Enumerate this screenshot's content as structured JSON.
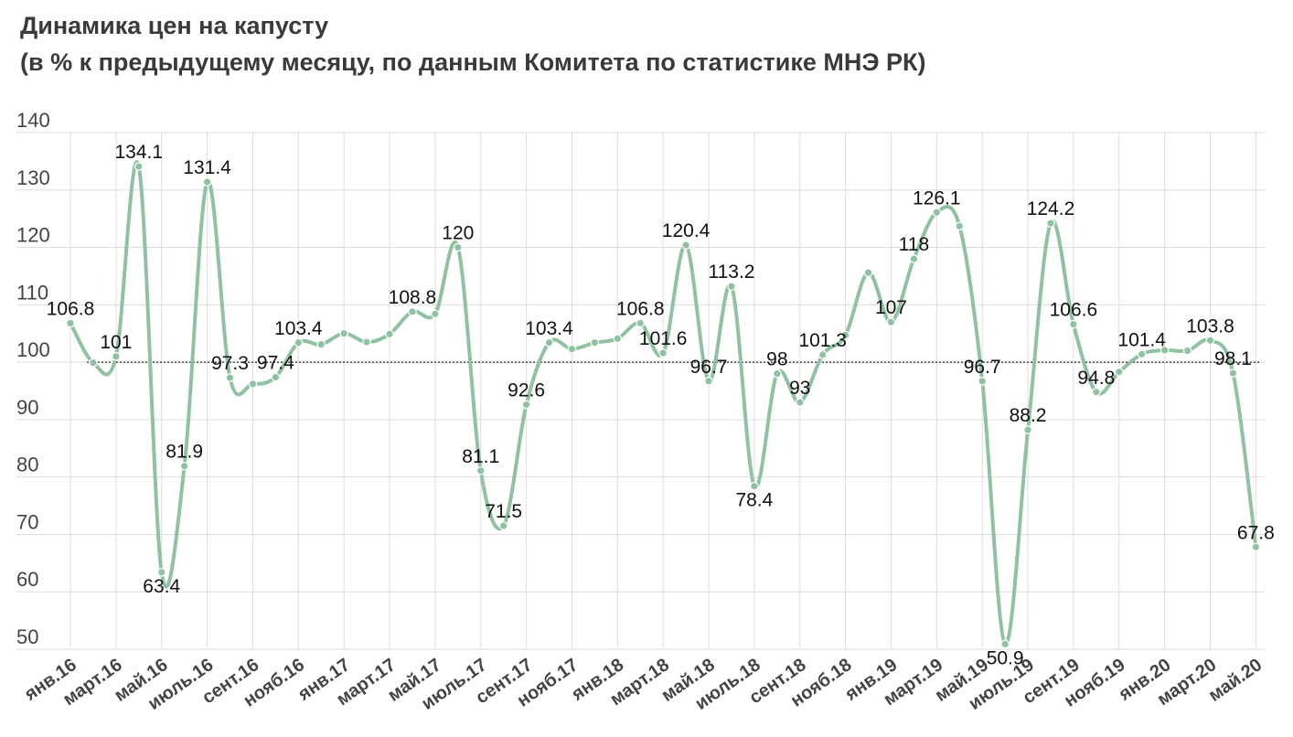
{
  "chart_data": {
    "type": "line",
    "title": "Динамика цен на капусту",
    "subtitle": "(в % к предыдущему месяцу, по данным Комитета по статистике МНЭ РК)",
    "xlabel": "",
    "ylabel": "",
    "ylim": [
      50,
      140
    ],
    "yticks": [
      140,
      130,
      120,
      110,
      100,
      90,
      80,
      70,
      60,
      50
    ],
    "reference_line": 100,
    "grid": true,
    "line_color": "#8fc1a2",
    "categories": [
      "янв.16",
      "февр.16",
      "март.16",
      "апр.16",
      "май.16",
      "июнь.16",
      "июль.16",
      "авг.16",
      "сент.16",
      "окт.16",
      "нояб.16",
      "дек.16",
      "янв.17",
      "февр.17",
      "март.17",
      "апр.17",
      "май.17",
      "июнь.17",
      "июль.17",
      "авг.17",
      "сент.17",
      "окт.17",
      "нояб.17",
      "дек.17",
      "янв.18",
      "февр.18",
      "март.18",
      "апр.18",
      "май.18",
      "июнь.18",
      "июль.18",
      "авг.18",
      "сент.18",
      "окт.18",
      "нояб.18",
      "дек.18",
      "янв.19",
      "февр.19",
      "март.19",
      "апр.19",
      "май.19",
      "июнь.19",
      "июль.19",
      "авг.19",
      "сент.19",
      "окт.19",
      "нояб.19",
      "дек.19",
      "янв.20",
      "февр.20",
      "март.20",
      "апр.20",
      "май.20"
    ],
    "x_tick_labels": [
      "янв.16",
      "март.16",
      "май.16",
      "июль.16",
      "сент.16",
      "нояб.16",
      "янв.17",
      "март.17",
      "май.17",
      "июль.17",
      "сент.17",
      "нояб.17",
      "янв.18",
      "март.18",
      "май.18",
      "июль.18",
      "сент.18",
      "нояб.18",
      "янв.19",
      "март.19",
      "май.19",
      "июль.19",
      "сент.19",
      "нояб.19",
      "янв.20",
      "март.20",
      "май.20"
    ],
    "values": [
      106.8,
      99.9,
      101,
      134.1,
      63.4,
      81.9,
      131.4,
      97.3,
      96.2,
      97.4,
      103.4,
      103.1,
      105,
      103.5,
      104.9,
      108.8,
      108.4,
      120,
      81.1,
      71.5,
      92.6,
      103.4,
      102.3,
      103.4,
      104.1,
      106.8,
      101.6,
      120.4,
      96.7,
      113.2,
      78.4,
      98,
      93,
      101.3,
      104.7,
      115.6,
      107,
      118,
      126.1,
      123.7,
      96.7,
      50.9,
      88.2,
      124.2,
      106.6,
      94.8,
      98.3,
      101.4,
      102.1,
      102,
      103.8,
      98.1,
      67.8
    ],
    "data_labels": [
      {
        "index": 0,
        "text": "106.8",
        "pos": "above"
      },
      {
        "index": 2,
        "text": "101",
        "pos": "above"
      },
      {
        "index": 3,
        "text": "134.1",
        "pos": "above"
      },
      {
        "index": 4,
        "text": "63.4",
        "pos": "below"
      },
      {
        "index": 5,
        "text": "81.9",
        "pos": "above"
      },
      {
        "index": 6,
        "text": "131.4",
        "pos": "above"
      },
      {
        "index": 7,
        "text": "97.3",
        "pos": "above"
      },
      {
        "index": 9,
        "text": "97.4",
        "pos": "above"
      },
      {
        "index": 10,
        "text": "103.4",
        "pos": "above"
      },
      {
        "index": 15,
        "text": "108.8",
        "pos": "above"
      },
      {
        "index": 17,
        "text": "120",
        "pos": "above"
      },
      {
        "index": 18,
        "text": "81.1",
        "pos": "above"
      },
      {
        "index": 19,
        "text": "71.5",
        "pos": "above"
      },
      {
        "index": 20,
        "text": "92.6",
        "pos": "above"
      },
      {
        "index": 21,
        "text": "103.4",
        "pos": "above"
      },
      {
        "index": 25,
        "text": "106.8",
        "pos": "above"
      },
      {
        "index": 26,
        "text": "101.6",
        "pos": "above"
      },
      {
        "index": 27,
        "text": "120.4",
        "pos": "above"
      },
      {
        "index": 28,
        "text": "96.7",
        "pos": "above"
      },
      {
        "index": 29,
        "text": "113.2",
        "pos": "above"
      },
      {
        "index": 30,
        "text": "78.4",
        "pos": "below"
      },
      {
        "index": 31,
        "text": "98",
        "pos": "above"
      },
      {
        "index": 32,
        "text": "93",
        "pos": "above"
      },
      {
        "index": 33,
        "text": "101.3",
        "pos": "above"
      },
      {
        "index": 36,
        "text": "107",
        "pos": "above"
      },
      {
        "index": 37,
        "text": "118",
        "pos": "above"
      },
      {
        "index": 38,
        "text": "126.1",
        "pos": "above"
      },
      {
        "index": 40,
        "text": "96.7",
        "pos": "above"
      },
      {
        "index": 41,
        "text": "50.9",
        "pos": "below"
      },
      {
        "index": 42,
        "text": "88.2",
        "pos": "above"
      },
      {
        "index": 43,
        "text": "124.2",
        "pos": "above"
      },
      {
        "index": 44,
        "text": "106.6",
        "pos": "above"
      },
      {
        "index": 45,
        "text": "94.8",
        "pos": "above"
      },
      {
        "index": 47,
        "text": "101.4",
        "pos": "above"
      },
      {
        "index": 50,
        "text": "103.8",
        "pos": "above"
      },
      {
        "index": 51,
        "text": "98.1",
        "pos": "above"
      },
      {
        "index": 52,
        "text": "67.8",
        "pos": "above"
      }
    ]
  }
}
